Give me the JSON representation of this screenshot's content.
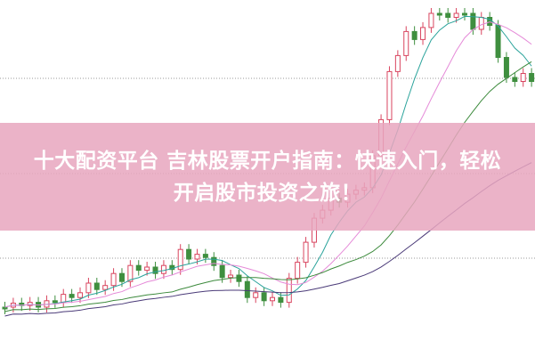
{
  "banner": {
    "title_line1": "十大配资平台 吉林股票开户指南：快速入门，轻松",
    "title_line2": "开启股市投资之旅！",
    "background_color": "#e8a6be"
  },
  "chart_colors": {
    "up": "#d9455f",
    "down": "#3f8f3f",
    "ma_pink": "#e58ad8",
    "ma_teal": "#2aa39b",
    "ma_dark": "#4a3a78",
    "ma_green": "#3c8a3c"
  }
}
